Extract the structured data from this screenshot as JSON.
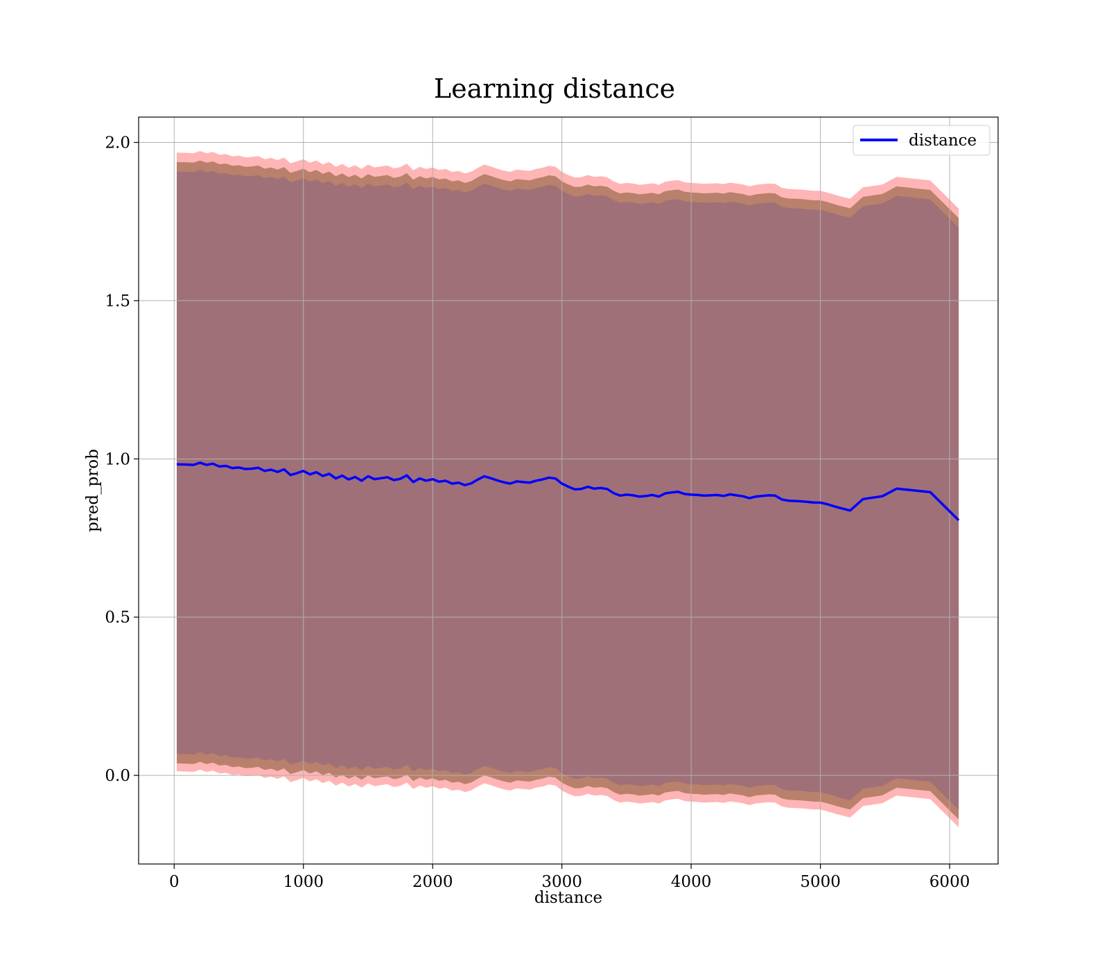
{
  "chart_data": {
    "type": "line",
    "title": "Learning distance",
    "xlabel": "distance",
    "ylabel": "pred_prob",
    "xlim": [
      -275,
      6375
    ],
    "ylim": [
      -0.28,
      2.08
    ],
    "xticks": [
      0,
      1000,
      2000,
      3000,
      4000,
      5000,
      6000
    ],
    "xtick_labels": [
      "0",
      "1000",
      "2000",
      "3000",
      "4000",
      "5000",
      "6000"
    ],
    "yticks": [
      0.0,
      0.5,
      1.0,
      1.5,
      2.0
    ],
    "ytick_labels": [
      "0.0",
      "0.5",
      "1.0",
      "1.5",
      "2.0"
    ],
    "grid": true,
    "legend": {
      "position": "top-right",
      "entries": [
        "distance"
      ]
    },
    "series": [
      {
        "name": "distance",
        "color": "#0000ff",
        "x": [
          20,
          100,
          150,
          200,
          250,
          300,
          350,
          400,
          450,
          500,
          550,
          600,
          650,
          700,
          750,
          800,
          850,
          900,
          950,
          1000,
          1050,
          1100,
          1150,
          1200,
          1250,
          1300,
          1350,
          1400,
          1450,
          1500,
          1550,
          1600,
          1650,
          1700,
          1750,
          1800,
          1850,
          1900,
          1950,
          2000,
          2050,
          2100,
          2150,
          2200,
          2250,
          2300,
          2350,
          2400,
          2450,
          2500,
          2550,
          2600,
          2650,
          2700,
          2750,
          2800,
          2850,
          2900,
          2950,
          3000,
          3050,
          3100,
          3150,
          3200,
          3250,
          3300,
          3350,
          3400,
          3450,
          3500,
          3550,
          3600,
          3650,
          3700,
          3750,
          3800,
          3850,
          3900,
          3950,
          4000,
          4050,
          4100,
          4150,
          4200,
          4250,
          4300,
          4350,
          4400,
          4450,
          4500,
          4550,
          4600,
          4650,
          4700,
          4750,
          4800,
          4850,
          4900,
          4950,
          5000,
          5050,
          5100,
          5150,
          5230,
          5330,
          5480,
          5590,
          5850,
          6070
        ],
        "y": [
          0.983,
          0.982,
          0.981,
          0.988,
          0.981,
          0.985,
          0.976,
          0.978,
          0.971,
          0.973,
          0.968,
          0.969,
          0.972,
          0.962,
          0.966,
          0.959,
          0.967,
          0.949,
          0.955,
          0.962,
          0.951,
          0.958,
          0.946,
          0.953,
          0.938,
          0.947,
          0.935,
          0.943,
          0.931,
          0.945,
          0.936,
          0.939,
          0.942,
          0.933,
          0.937,
          0.948,
          0.927,
          0.938,
          0.931,
          0.936,
          0.928,
          0.931,
          0.922,
          0.925,
          0.917,
          0.923,
          0.935,
          0.945,
          0.939,
          0.932,
          0.926,
          0.922,
          0.929,
          0.927,
          0.925,
          0.931,
          0.935,
          0.941,
          0.938,
          0.922,
          0.912,
          0.904,
          0.905,
          0.912,
          0.906,
          0.908,
          0.905,
          0.892,
          0.884,
          0.887,
          0.885,
          0.881,
          0.883,
          0.886,
          0.881,
          0.891,
          0.894,
          0.896,
          0.889,
          0.887,
          0.886,
          0.884,
          0.885,
          0.886,
          0.883,
          0.888,
          0.885,
          0.882,
          0.876,
          0.881,
          0.883,
          0.885,
          0.884,
          0.872,
          0.868,
          0.867,
          0.866,
          0.864,
          0.862,
          0.862,
          0.857,
          0.851,
          0.845,
          0.837,
          0.873,
          0.882,
          0.906,
          0.895,
          0.806
        ]
      }
    ],
    "bands": [
      {
        "color": "#ff6b6b",
        "opacity": 0.5,
        "upper_offset": 0.985,
        "lower_offset": -0.97
      },
      {
        "color": "#9b6a4c",
        "opacity": 0.7,
        "upper_offset": 0.955,
        "lower_offset": -0.945
      },
      {
        "color": "#a07078",
        "opacity": 1.0,
        "upper_offset": 0.925,
        "lower_offset": -0.915
      }
    ]
  }
}
